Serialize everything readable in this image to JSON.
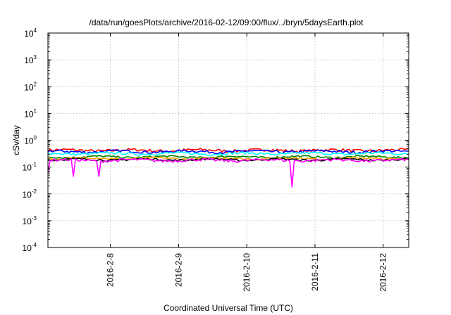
{
  "chart_data": {
    "type": "line",
    "title": "/data/run/goesPlots/archive/2016-02-12/09:00/flux/../bryn/5daysEarth.plot",
    "xlabel": "Coordinated Universal Time (UTC)",
    "ylabel": "cSv/day",
    "yscale": "log",
    "ylim": [
      0.0001,
      10000
    ],
    "xlim": [
      "2016-02-07T02:00",
      "2016-02-12T09:00"
    ],
    "grid": true,
    "legend": "none",
    "x_ticks": [
      "2016-2-8",
      "2016-2-9",
      "2016-2-10",
      "2016-2-11",
      "2016-2-12"
    ],
    "y_ticks": [
      {
        "base": "10",
        "exp": "4"
      },
      {
        "base": "10",
        "exp": "3"
      },
      {
        "base": "10",
        "exp": "2"
      },
      {
        "base": "10",
        "exp": "1"
      },
      {
        "base": "10",
        "exp": "0"
      },
      {
        "base": "10",
        "exp": "-1"
      },
      {
        "base": "10",
        "exp": "-2"
      },
      {
        "base": "10",
        "exp": "-3"
      },
      {
        "base": "10",
        "exp": "-4"
      }
    ],
    "series": [
      {
        "color": "#ff00ff",
        "level": 0.18,
        "amp": 0.12,
        "dips": [
          {
            "at": "2016-02-07T02:00",
            "val": 0.06
          },
          {
            "at": "2016-02-07T11:00",
            "val": 0.045
          },
          {
            "at": "2016-02-07T20:00",
            "val": 0.045
          },
          {
            "at": "2016-02-10T16:00",
            "val": 0.018
          }
        ]
      },
      {
        "color": "#000000",
        "level": 0.19,
        "amp": 0.08
      },
      {
        "color": "#ffa500",
        "level": 0.21,
        "amp": 0.08
      },
      {
        "color": "#008000",
        "level": 0.24,
        "amp": 0.08
      },
      {
        "color": "#00ffff",
        "level": 0.32,
        "amp": 0.1
      },
      {
        "color": "#0000ff",
        "level": 0.38,
        "amp": 0.12
      },
      {
        "color": "#ff0000",
        "level": 0.42,
        "amp": 0.13
      }
    ]
  }
}
